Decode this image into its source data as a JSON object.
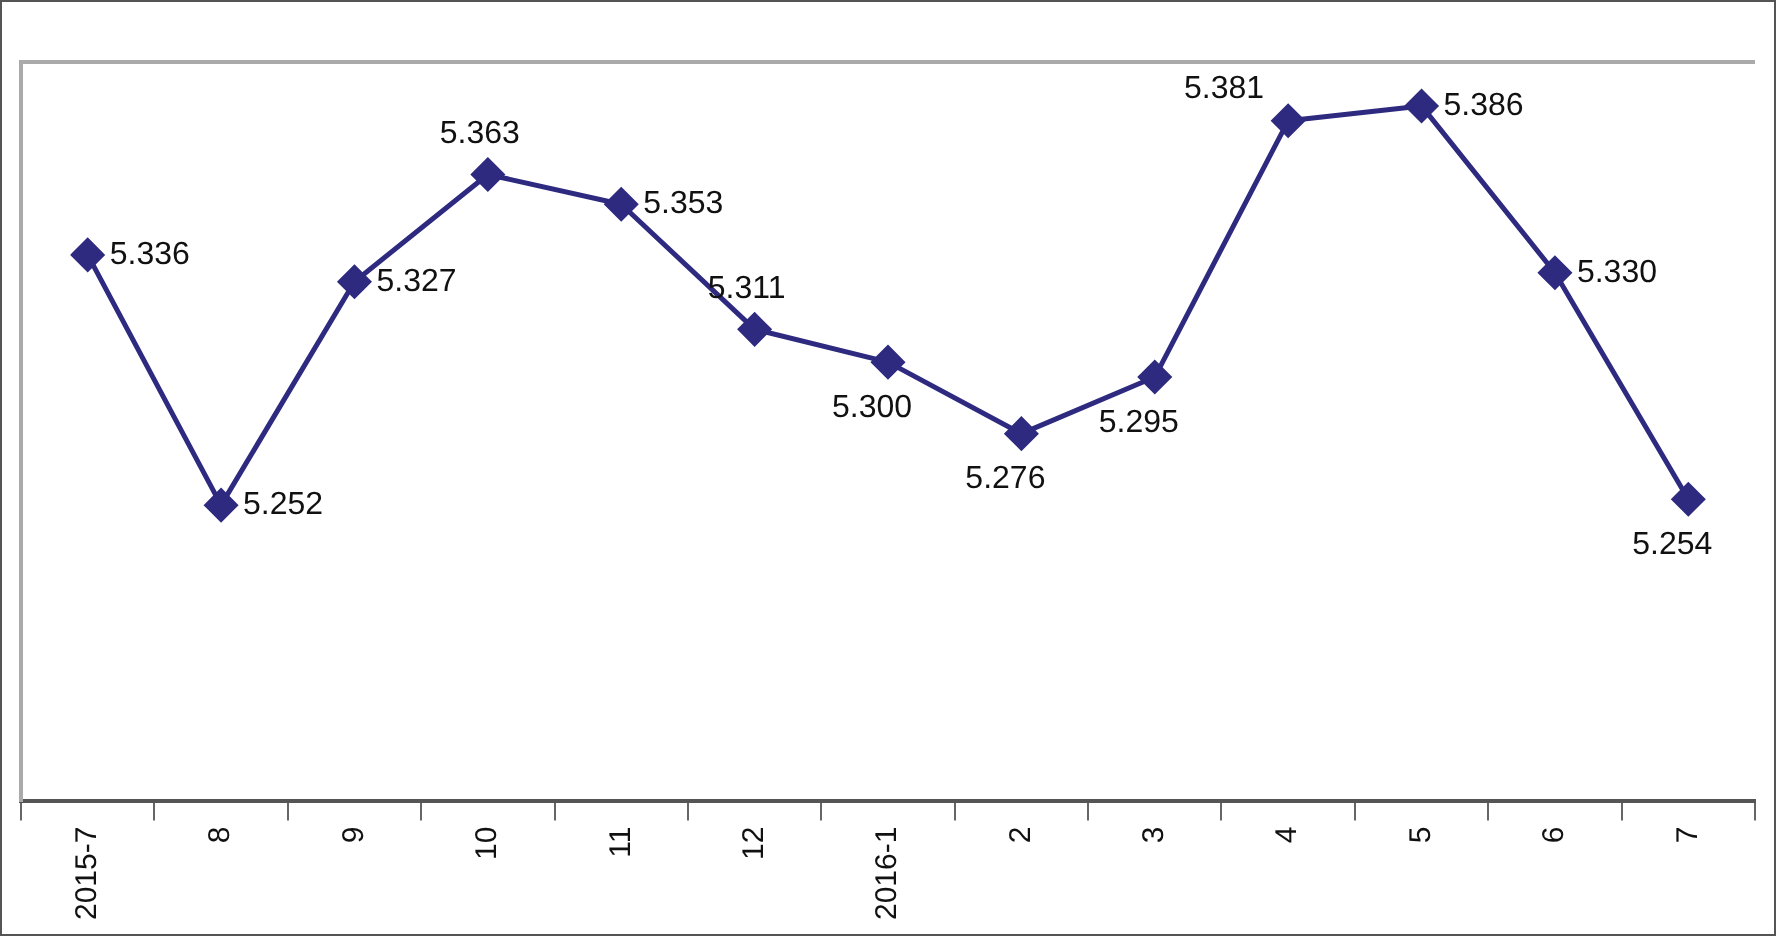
{
  "chart_data": {
    "type": "line",
    "categories": [
      "2015-7",
      "8",
      "9",
      "10",
      "11",
      "12",
      "2016-1",
      "2",
      "3",
      "4",
      "5",
      "6",
      "7"
    ],
    "series": [
      {
        "color": "#2e2a80",
        "values": [
          5.336,
          5.252,
          5.327,
          5.363,
          5.353,
          5.311,
          5.3,
          5.276,
          5.295,
          5.381,
          5.386,
          5.33,
          5.254
        ],
        "value_labels": [
          "5.336",
          "5.252",
          "5.327",
          "5.363",
          "5.353",
          "5.311",
          "5.300",
          "5.276",
          "5.295",
          "5.381",
          "5.386",
          "5.330",
          "5.254"
        ]
      }
    ],
    "marker": "diamond",
    "line_style": "solid",
    "grid": false,
    "legend": false,
    "tick_labels": "x"
  }
}
